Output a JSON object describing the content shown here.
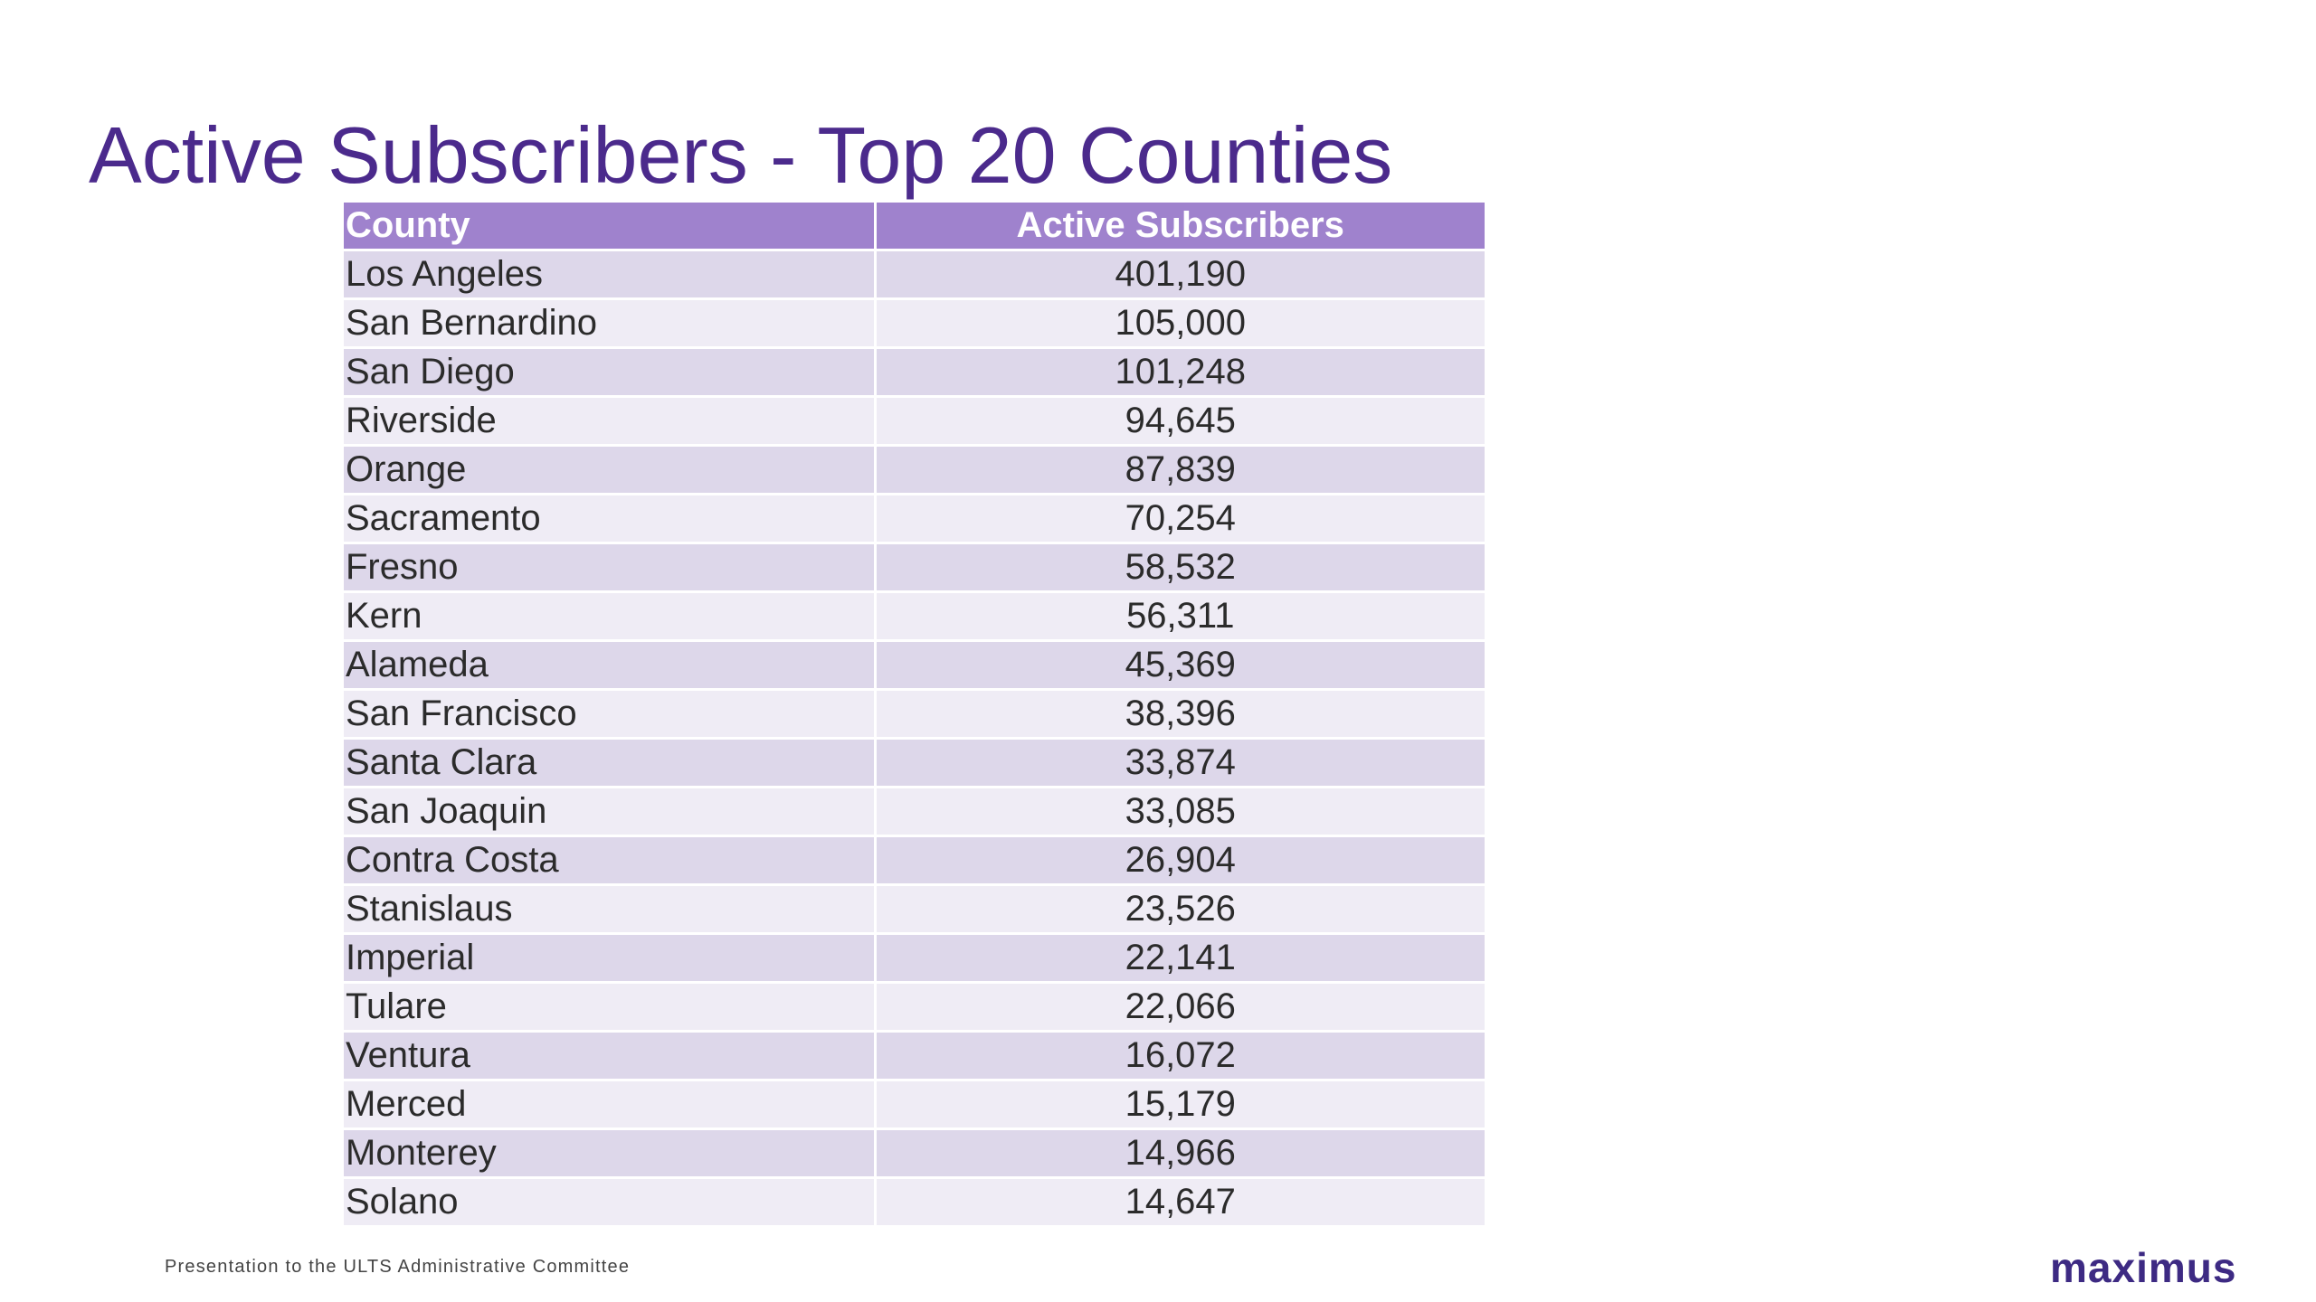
{
  "slide": {
    "title": "Active Subscribers - Top 20 Counties",
    "footer": "Presentation to the ULTS Administrative Committee",
    "logo_text": "maximus"
  },
  "table": {
    "headers": [
      "County",
      "Active Subscribers"
    ],
    "rows": [
      [
        "Los Angeles",
        "401,190"
      ],
      [
        "San Bernardino",
        "105,000"
      ],
      [
        "San Diego",
        "101,248"
      ],
      [
        "Riverside",
        "94,645"
      ],
      [
        "Orange",
        "87,839"
      ],
      [
        "Sacramento",
        "70,254"
      ],
      [
        "Fresno",
        "58,532"
      ],
      [
        "Kern",
        "56,311"
      ],
      [
        "Alameda",
        "45,369"
      ],
      [
        "San Francisco",
        "38,396"
      ],
      [
        "Santa Clara",
        "33,874"
      ],
      [
        "San Joaquin",
        "33,085"
      ],
      [
        "Contra Costa",
        "26,904"
      ],
      [
        "Stanislaus",
        "23,526"
      ],
      [
        "Imperial",
        "22,141"
      ],
      [
        "Tulare",
        "22,066"
      ],
      [
        "Ventura",
        "16,072"
      ],
      [
        "Merced",
        "15,179"
      ],
      [
        "Monterey",
        "14,966"
      ],
      [
        "Solano",
        "14,647"
      ]
    ]
  },
  "colors": {
    "title": "#4b2a8c",
    "header_bg": "#9f82cd",
    "row_odd": "#ddd7ea",
    "row_even": "#efecf5",
    "logo": "#3d2a83"
  }
}
